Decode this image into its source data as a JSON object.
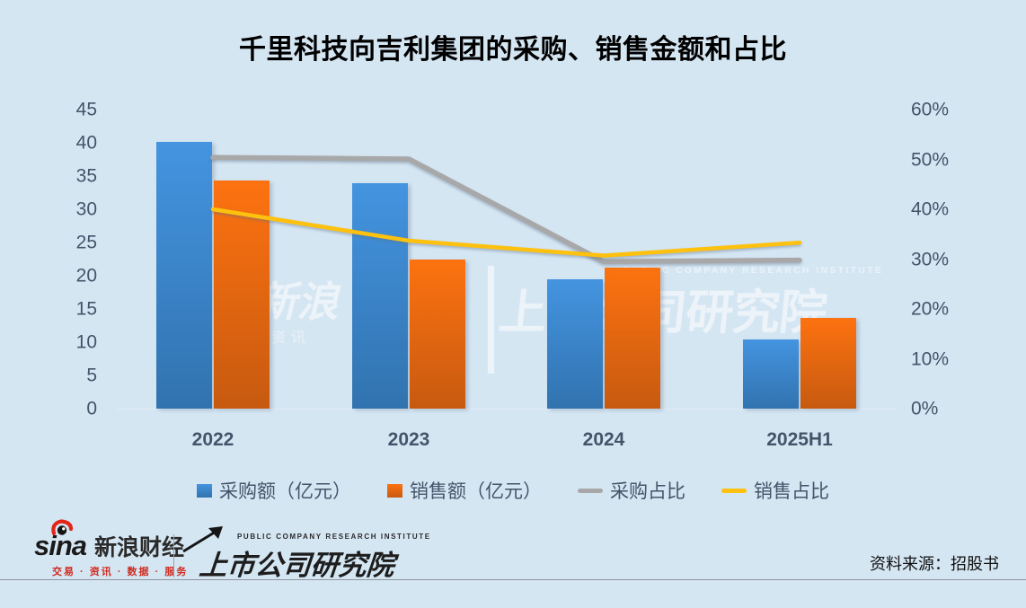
{
  "title": "千里科技向吉利集团的采购、销售金额和占比",
  "chart_data": {
    "type": "bar",
    "combo": "bar+line",
    "categories": [
      "2022",
      "2023",
      "2024",
      "2025H1"
    ],
    "series": [
      {
        "name": "采购额（亿元）",
        "type": "bar",
        "axis": "left",
        "color_top": "#4494e0",
        "color_bottom": "#3173af",
        "values": [
          40.2,
          33.9,
          19.5,
          10.4
        ]
      },
      {
        "name": "销售额（亿元）",
        "type": "bar",
        "axis": "left",
        "color_top": "#fd7210",
        "color_bottom": "#c75a10",
        "values": [
          34.3,
          22.4,
          21.2,
          13.6
        ]
      },
      {
        "name": "采购占比",
        "type": "line",
        "axis": "right",
        "color": "#a8a8a8",
        "values": [
          50.4,
          50.1,
          29.5,
          29.8
        ]
      },
      {
        "name": "销售占比",
        "type": "line",
        "axis": "right",
        "color": "#fec10d",
        "values": [
          40.0,
          33.7,
          30.7,
          33.3
        ]
      }
    ],
    "left_axis": {
      "min": 0,
      "max": 45,
      "ticks": [
        "45",
        "40",
        "35",
        "30",
        "25",
        "20",
        "15",
        "10",
        "5",
        "0"
      ]
    },
    "right_axis": {
      "min": 0,
      "max": 60,
      "ticks": [
        "60%",
        "50%",
        "40%",
        "30%",
        "20%",
        "10%",
        "0%"
      ]
    },
    "legend_position": "bottom",
    "grid": false
  },
  "watermark": {
    "sina_fragment": "a 新浪",
    "sina_sub": "资讯",
    "institute_caption": "PUBLIC COMPANY RESEARCH INSTITUTE",
    "institute_text": "上市公司研究院"
  },
  "footer": {
    "sina_word": "sina",
    "sina_brand": "新浪财经",
    "sina_tagline": "交易 · 资讯 · 数据 · 服务",
    "institute_caption": "PUBLIC COMPANY RESEARCH INSTITUTE",
    "institute_name": "上市公司研究院",
    "source": "资料来源：招股书"
  },
  "colors": {
    "background": "#d5e6f3",
    "axis_text": "#44546a",
    "title_text": "#000000",
    "bar_blue": "#4494e0",
    "bar_orange": "#fd7210",
    "line_gray": "#a8a8a8",
    "line_yellow": "#fec10d",
    "tagline_red": "#d02a1e"
  }
}
